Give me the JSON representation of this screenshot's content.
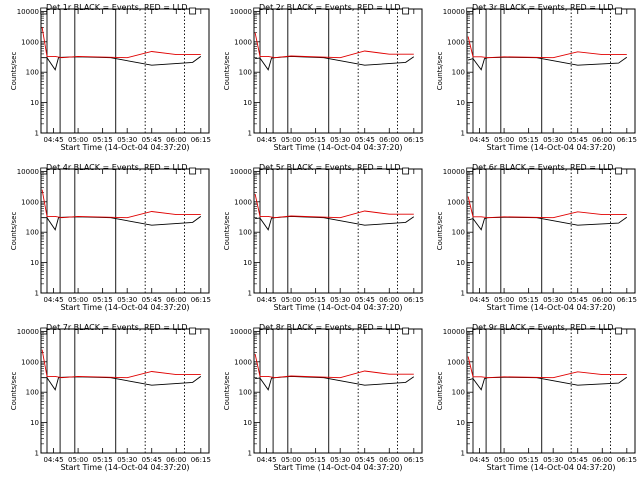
{
  "chart_data": [
    {
      "type": "line",
      "title": "Det 1r BLACK = Events, RED = LLD",
      "xlabel": "Start Time (14-Oct-04 04:37:20)",
      "ylabel": "Counts/sec",
      "xticks": [
        "04:45",
        "05:00",
        "05:15",
        "05:30",
        "05:45",
        "06:00",
        "06:15"
      ],
      "yticks": [
        "1",
        "10",
        "100",
        "1000",
        "10000"
      ],
      "ylim": [
        1,
        12000
      ],
      "yscale": "log",
      "series": [
        {
          "color": "#000000",
          "x": [
            "04:38",
            "04:41",
            "04:46",
            "04:48",
            "04:50",
            "05:00",
            "05:20",
            "05:45",
            "06:10",
            "06:15"
          ],
          "values": [
            300,
            300,
            120,
            300,
            310,
            320,
            300,
            170,
            210,
            330
          ]
        },
        {
          "color": "#e00000",
          "x": [
            "04:38",
            "04:41",
            "04:46",
            "04:50",
            "05:00",
            "05:30",
            "05:45",
            "06:00",
            "06:15"
          ],
          "values": [
            3000,
            330,
            330,
            300,
            330,
            300,
            480,
            380,
            380
          ]
        }
      ]
    },
    {
      "type": "line",
      "title": "Det 2r BLACK = Events, RED = LLD",
      "xlabel": "Start Time (14-Oct-04 04:37:20)",
      "ylabel": "Counts/sec",
      "xticks": [
        "04:45",
        "05:00",
        "05:15",
        "05:30",
        "05:45",
        "06:00",
        "06:15"
      ],
      "yticks": [
        "1",
        "10",
        "100",
        "1000",
        "10000"
      ],
      "ylim": [
        1,
        12000
      ],
      "yscale": "log",
      "series": [
        {
          "color": "#000000",
          "x": [
            "04:38",
            "04:41",
            "04:46",
            "04:48",
            "04:50",
            "05:00",
            "05:20",
            "05:45",
            "06:10",
            "06:15"
          ],
          "values": [
            280,
            290,
            120,
            290,
            300,
            330,
            300,
            170,
            210,
            320
          ]
        },
        {
          "color": "#e00000",
          "x": [
            "04:38",
            "04:41",
            "04:46",
            "04:50",
            "05:00",
            "05:30",
            "05:45",
            "06:00",
            "06:15"
          ],
          "values": [
            2000,
            330,
            330,
            300,
            340,
            300,
            500,
            390,
            390
          ]
        }
      ]
    },
    {
      "type": "line",
      "title": "Det 3r BLACK = Events, RED = LLD",
      "xlabel": "Start Time (14-Oct-04 04:37:20)",
      "ylabel": "Counts/sec",
      "xticks": [
        "04:45",
        "05:00",
        "05:15",
        "05:30",
        "05:45",
        "06:00",
        "06:15"
      ],
      "yticks": [
        "1",
        "10",
        "100",
        "1000",
        "10000"
      ],
      "ylim": [
        1,
        12000
      ],
      "yscale": "log",
      "series": [
        {
          "color": "#000000",
          "x": [
            "04:38",
            "04:41",
            "04:46",
            "04:48",
            "04:50",
            "05:00",
            "05:20",
            "05:45",
            "06:10",
            "06:15"
          ],
          "values": [
            250,
            280,
            120,
            280,
            300,
            310,
            300,
            170,
            200,
            310
          ]
        },
        {
          "color": "#e00000",
          "x": [
            "04:38",
            "04:41",
            "04:46",
            "04:50",
            "05:00",
            "05:30",
            "05:45",
            "06:00",
            "06:15"
          ],
          "values": [
            1500,
            320,
            320,
            300,
            320,
            300,
            470,
            380,
            380
          ]
        }
      ]
    },
    {
      "type": "line",
      "title": "Det 4r BLACK = Events, RED = LLD",
      "xlabel": "Start Time (14-Oct-04 04:37:20)",
      "ylabel": "Counts/sec",
      "xticks": [
        "04:45",
        "05:00",
        "05:15",
        "05:30",
        "05:45",
        "06:00",
        "06:15"
      ],
      "yticks": [
        "1",
        "10",
        "100",
        "1000",
        "10000"
      ],
      "ylim": [
        1,
        12000
      ],
      "yscale": "log",
      "series": [
        {
          "color": "#000000",
          "x": [
            "04:38",
            "04:41",
            "04:46",
            "04:48",
            "04:50",
            "05:00",
            "05:20",
            "05:45",
            "06:10",
            "06:15"
          ],
          "values": [
            300,
            300,
            120,
            300,
            310,
            320,
            300,
            170,
            210,
            330
          ]
        },
        {
          "color": "#e00000",
          "x": [
            "04:38",
            "04:41",
            "04:46",
            "04:50",
            "05:00",
            "05:30",
            "05:45",
            "06:00",
            "06:15"
          ],
          "values": [
            2500,
            330,
            330,
            300,
            330,
            300,
            480,
            380,
            380
          ]
        }
      ]
    },
    {
      "type": "line",
      "title": "Det 5r BLACK = Events, RED = LLD",
      "xlabel": "Start Time (14-Oct-04 04:37:20)",
      "ylabel": "Counts/sec",
      "xticks": [
        "04:45",
        "05:00",
        "05:15",
        "05:30",
        "05:45",
        "06:00",
        "06:15"
      ],
      "yticks": [
        "1",
        "10",
        "100",
        "1000",
        "10000"
      ],
      "ylim": [
        1,
        12000
      ],
      "yscale": "log",
      "series": [
        {
          "color": "#000000",
          "x": [
            "04:38",
            "04:41",
            "04:46",
            "04:48",
            "04:50",
            "05:00",
            "05:20",
            "05:45",
            "06:10",
            "06:15"
          ],
          "values": [
            280,
            290,
            120,
            290,
            300,
            330,
            300,
            170,
            210,
            320
          ]
        },
        {
          "color": "#e00000",
          "x": [
            "04:38",
            "04:41",
            "04:46",
            "04:50",
            "05:00",
            "05:30",
            "05:45",
            "06:00",
            "06:15"
          ],
          "values": [
            1800,
            330,
            330,
            300,
            340,
            300,
            500,
            390,
            390
          ]
        }
      ]
    },
    {
      "type": "line",
      "title": "Det 6r BLACK = Events, RED = LLD",
      "xlabel": "Start Time (14-Oct-04 04:37:20)",
      "ylabel": "Counts/sec",
      "xticks": [
        "04:45",
        "05:00",
        "05:15",
        "05:30",
        "05:45",
        "06:00",
        "06:15"
      ],
      "yticks": [
        "1",
        "10",
        "100",
        "1000",
        "10000"
      ],
      "ylim": [
        1,
        12000
      ],
      "yscale": "log",
      "series": [
        {
          "color": "#000000",
          "x": [
            "04:38",
            "04:41",
            "04:46",
            "04:48",
            "04:50",
            "05:00",
            "05:20",
            "05:45",
            "06:10",
            "06:15"
          ],
          "values": [
            250,
            280,
            120,
            280,
            300,
            310,
            300,
            170,
            200,
            310
          ]
        },
        {
          "color": "#e00000",
          "x": [
            "04:38",
            "04:41",
            "04:46",
            "04:50",
            "05:00",
            "05:30",
            "05:45",
            "06:00",
            "06:15"
          ],
          "values": [
            1500,
            320,
            320,
            300,
            320,
            300,
            470,
            380,
            380
          ]
        }
      ]
    },
    {
      "type": "line",
      "title": "Det 7r BLACK = Events, RED = LLD",
      "xlabel": "Start Time (14-Oct-04 04:37:20)",
      "ylabel": "Counts/sec",
      "xticks": [
        "04:45",
        "05:00",
        "05:15",
        "05:30",
        "05:45",
        "06:00",
        "06:15"
      ],
      "yticks": [
        "1",
        "10",
        "100",
        "1000",
        "10000"
      ],
      "ylim": [
        1,
        12000
      ],
      "yscale": "log",
      "series": [
        {
          "color": "#000000",
          "x": [
            "04:38",
            "04:41",
            "04:46",
            "04:48",
            "04:50",
            "05:00",
            "05:20",
            "05:45",
            "06:10",
            "06:15"
          ],
          "values": [
            300,
            300,
            120,
            300,
            310,
            320,
            300,
            170,
            210,
            330
          ]
        },
        {
          "color": "#e00000",
          "x": [
            "04:38",
            "04:41",
            "04:46",
            "04:50",
            "05:00",
            "05:30",
            "05:45",
            "06:00",
            "06:15"
          ],
          "values": [
            2500,
            330,
            330,
            300,
            330,
            300,
            480,
            380,
            380
          ]
        }
      ]
    },
    {
      "type": "line",
      "title": "Det 8r BLACK = Events, RED = LLD",
      "xlabel": "Start Time (14-Oct-04 04:37:20)",
      "ylabel": "Counts/sec",
      "xticks": [
        "04:45",
        "05:00",
        "05:15",
        "05:30",
        "05:45",
        "06:00",
        "06:15"
      ],
      "yticks": [
        "1",
        "10",
        "100",
        "1000",
        "10000"
      ],
      "ylim": [
        1,
        12000
      ],
      "yscale": "log",
      "series": [
        {
          "color": "#000000",
          "x": [
            "04:38",
            "04:41",
            "04:46",
            "04:48",
            "04:50",
            "05:00",
            "05:20",
            "05:45",
            "06:10",
            "06:15"
          ],
          "values": [
            280,
            290,
            120,
            290,
            300,
            330,
            300,
            170,
            210,
            320
          ]
        },
        {
          "color": "#e00000",
          "x": [
            "04:38",
            "04:41",
            "04:46",
            "04:50",
            "05:00",
            "05:30",
            "05:45",
            "06:00",
            "06:15"
          ],
          "values": [
            1800,
            330,
            330,
            300,
            340,
            300,
            500,
            390,
            390
          ]
        }
      ]
    },
    {
      "type": "line",
      "title": "Det 9r BLACK = Events, RED = LLD",
      "xlabel": "Start Time (14-Oct-04 04:37:20)",
      "ylabel": "Counts/sec",
      "xticks": [
        "04:45",
        "05:00",
        "05:15",
        "05:30",
        "05:45",
        "06:00",
        "06:15"
      ],
      "yticks": [
        "1",
        "10",
        "100",
        "1000",
        "10000"
      ],
      "ylim": [
        1,
        12000
      ],
      "yscale": "log",
      "series": [
        {
          "color": "#000000",
          "x": [
            "04:38",
            "04:41",
            "04:46",
            "04:48",
            "04:50",
            "05:00",
            "05:20",
            "05:45",
            "06:10",
            "06:15"
          ],
          "values": [
            250,
            280,
            120,
            280,
            300,
            310,
            300,
            170,
            200,
            310
          ]
        },
        {
          "color": "#e00000",
          "x": [
            "04:38",
            "04:41",
            "04:46",
            "04:50",
            "05:00",
            "05:30",
            "05:45",
            "06:00",
            "06:15"
          ],
          "values": [
            1500,
            320,
            320,
            300,
            320,
            300,
            470,
            380,
            380
          ]
        }
      ]
    }
  ]
}
